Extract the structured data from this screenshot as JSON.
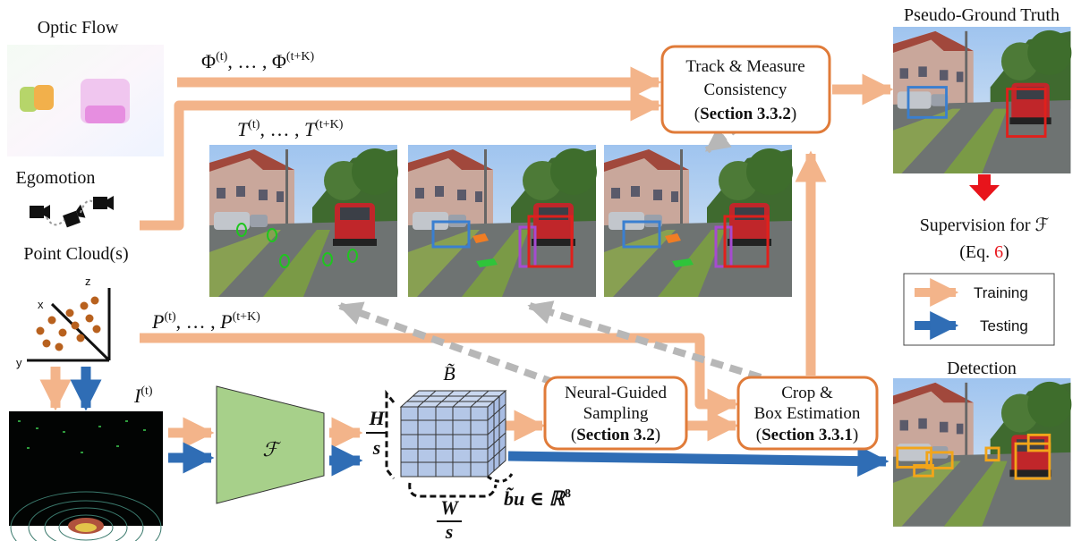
{
  "labels": {
    "optic_flow": "Optic Flow",
    "egomotion": "Egomotion",
    "point_clouds": "Point Cloud(s)",
    "pseudo_gt": "Pseudo-Ground Truth",
    "detection": "Detection",
    "supervision_line1": "Supervision for ℱ",
    "supervision_line2_prefix": "(Eq. ",
    "supervision_eq_number": "6",
    "supervision_line2_suffix": ")"
  },
  "math": {
    "phi_seq": "Φ(t), …, Φ(t+K)",
    "t_seq": "T(t), …, T(t+K)",
    "p_seq": "P(t), …, P(t+K)",
    "image": "I(t)",
    "model": "ℱ",
    "btilde": "B̃",
    "h_num": "H",
    "s_den": "s",
    "w_num": "W",
    "bu": "b̃u ∈ ℝ",
    "bu_power": "8"
  },
  "axes": {
    "x": "x",
    "y": "y",
    "z": "z"
  },
  "boxes": {
    "track": {
      "line1": "Track & Measure",
      "line2": "Consistency",
      "section": "Section 3.3.2"
    },
    "sampling": {
      "line1": "Neural-Guided",
      "line2": "Sampling",
      "section": "Section 3.2"
    },
    "crop": {
      "line1": "Crop &",
      "line2": "Box Estimation",
      "section": "Section 3.3.1"
    }
  },
  "legend": {
    "training": "Training",
    "testing": "Testing"
  },
  "colors": {
    "training_arrow": "#f3b48a",
    "testing_arrow": "#2f6db5",
    "box_border": "#e07b39",
    "supervision_arrow": "#e8141b",
    "model_fill": "#a7d08a",
    "tensor_fill": "#b4c7e7",
    "dashed_arrow": "#b7b7b7"
  }
}
